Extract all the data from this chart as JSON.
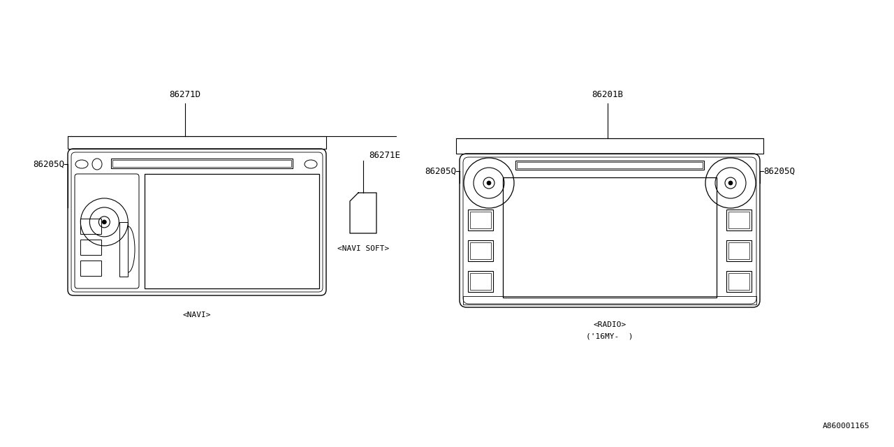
{
  "bg_color": "#ffffff",
  "line_color": "#000000",
  "font_family": "monospace",
  "font_size_label": 9,
  "font_size_small": 8,
  "diagram_id": "A860001165",
  "navi_label": "86271D",
  "navi_sub_label": "86205Q",
  "navi_caption": "<NAVI>",
  "navi_soft_label": "86271E",
  "navi_soft_caption": "<NAVI SOFT>",
  "radio_label": "86201B",
  "radio_sub_left": "86205Q",
  "radio_sub_right": "86205Q",
  "radio_caption1": "<RADIO>",
  "radio_caption2": "('16MY-  )"
}
